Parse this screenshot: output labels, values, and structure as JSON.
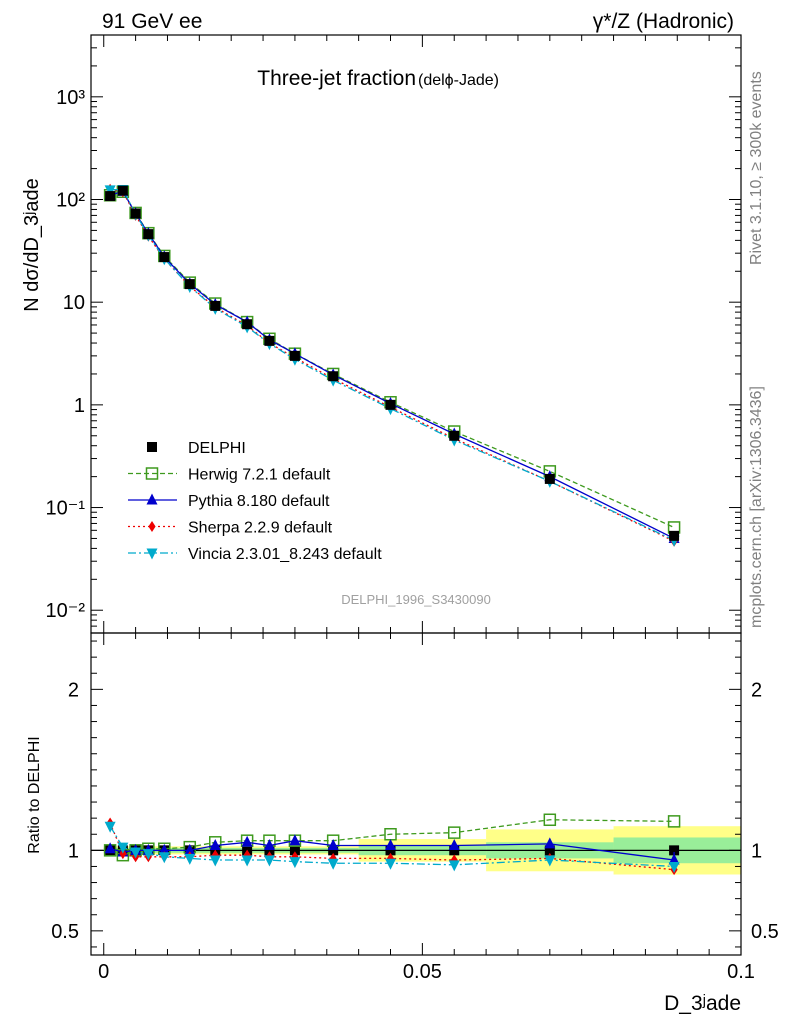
{
  "header": {
    "left": "91 GeV ee",
    "right": "γ*/Z (Hadronic)"
  },
  "side_labels": {
    "rivet": "Rivet 3.1.10, ≥ 300k events",
    "mcplots": "mcplots.cern.ch [arXiv:1306.3436]"
  },
  "chart_data": [
    {
      "type": "scatter",
      "title": "Three-jet fraction",
      "title_suffix": "(delϕ-Jade)",
      "ylabel": "N dσ/dD_3ʲade",
      "xlabel": "D_3ʲade",
      "y_scale": "log",
      "ylim": [
        0.006,
        4000
      ],
      "xlim": [
        -0.002,
        0.1
      ],
      "y_ticks": [
        "10⁻²",
        "10⁻¹",
        "1",
        "10",
        "10²",
        "10³"
      ],
      "analysis_label": "DELPHI_1996_S3430090",
      "legend_position": "middle-left",
      "x": [
        0.001,
        0.003,
        0.005,
        0.007,
        0.0095,
        0.0135,
        0.0175,
        0.0225,
        0.026,
        0.03,
        0.036,
        0.045,
        0.055,
        0.07,
        0.0895
      ],
      "series": [
        {
          "name": "DELPHI",
          "color": "#000000",
          "marker": "square-filled",
          "values": [
            108,
            122,
            73,
            46,
            27.5,
            15,
            9.2,
            6.1,
            4.2,
            3.0,
            1.9,
            1.0,
            0.5,
            0.19,
            0.053
          ],
          "errors": [
            3,
            3,
            2,
            1.2,
            0.8,
            0.4,
            0.25,
            0.2,
            0.13,
            0.1,
            0.06,
            0.03,
            0.02,
            0.01,
            0.004
          ]
        },
        {
          "name": "Herwig 7.2.1 default",
          "color": "#3e9a1e",
          "marker": "square-open",
          "line": "dashed",
          "values": [
            110,
            119,
            74,
            47,
            28.2,
            15.5,
            9.7,
            6.4,
            4.4,
            3.15,
            2.0,
            1.06,
            0.55,
            0.225,
            0.064
          ]
        },
        {
          "name": "Pythia 8.180 default",
          "color": "#0000cc",
          "marker": "triangle-up",
          "line": "solid",
          "values": [
            110,
            120,
            73,
            46.5,
            27.6,
            15.1,
            9.5,
            6.4,
            4.3,
            3.15,
            1.96,
            1.03,
            0.52,
            0.2,
            0.05
          ]
        },
        {
          "name": "Sherpa 2.2.9 default",
          "color": "#ee0000",
          "marker": "diamond",
          "line": "dotted",
          "values": [
            126,
            119,
            70,
            44,
            26.3,
            14.3,
            8.9,
            5.9,
            4.0,
            2.88,
            1.8,
            0.95,
            0.47,
            0.18,
            0.047
          ]
        },
        {
          "name": "Vincia 2.3.01_8.243 default",
          "color": "#00aacc",
          "marker": "triangle-down",
          "line": "dashdot",
          "values": [
            124,
            125,
            72,
            45,
            26.5,
            14.2,
            8.7,
            5.75,
            3.95,
            2.78,
            1.74,
            0.92,
            0.455,
            0.18,
            0.048
          ]
        }
      ]
    },
    {
      "type": "scatter",
      "title": "",
      "ylabel": "Ratio to DELPHI",
      "xlabel": "D_3ʲade",
      "ylim": [
        0.35,
        2.35
      ],
      "xlim": [
        -0.002,
        0.1
      ],
      "y_ticks": [
        0.5,
        1,
        2
      ],
      "x_ticks": [
        0,
        0.05,
        0.1
      ],
      "x_tick_labels": [
        "0",
        "0.05",
        "0.1"
      ],
      "reference_line": 1,
      "uncertainty_bands": [
        {
          "x": [
            0,
            0.04
          ],
          "inner": [
            0.985,
            1.015
          ],
          "outer": [
            0.975,
            1.025
          ]
        },
        {
          "x": [
            0.04,
            0.06
          ],
          "inner": [
            0.97,
            1.03
          ],
          "outer": [
            0.93,
            1.07
          ]
        },
        {
          "x": [
            0.06,
            0.08
          ],
          "inner": [
            0.95,
            1.05
          ],
          "outer": [
            0.87,
            1.13
          ]
        },
        {
          "x": [
            0.08,
            0.1
          ],
          "inner": [
            0.92,
            1.08
          ],
          "outer": [
            0.85,
            1.15
          ]
        }
      ],
      "series": [
        {
          "name": "Herwig 7.2.1 default",
          "color": "#3e9a1e",
          "marker": "square-open",
          "line": "dashed",
          "values": [
            1.0,
            0.97,
            1.0,
            1.01,
            1.01,
            1.02,
            1.05,
            1.06,
            1.06,
            1.06,
            1.06,
            1.1,
            1.11,
            1.19,
            1.18
          ]
        },
        {
          "name": "Pythia 8.180 default",
          "color": "#0000cc",
          "marker": "triangle-up",
          "line": "solid",
          "values": [
            1.01,
            0.99,
            1.0,
            1.0,
            1.0,
            1.0,
            1.03,
            1.05,
            1.03,
            1.06,
            1.03,
            1.03,
            1.03,
            1.04,
            0.94
          ],
          "errors": [
            0.01,
            0.01,
            0.01,
            0.01,
            0.01,
            0.01,
            0.01,
            0.01,
            0.01,
            0.01,
            0.01,
            0.01,
            0.02,
            0.02,
            0.05
          ]
        },
        {
          "name": "Sherpa 2.2.9 default",
          "color": "#ee0000",
          "marker": "diamond",
          "line": "dotted",
          "values": [
            1.17,
            0.98,
            0.96,
            0.96,
            0.96,
            0.96,
            0.97,
            0.97,
            0.96,
            0.96,
            0.95,
            0.95,
            0.94,
            0.95,
            0.88
          ]
        },
        {
          "name": "Vincia 2.3.01_8.243 default",
          "color": "#00aacc",
          "marker": "triangle-down",
          "line": "dashdot",
          "values": [
            1.15,
            1.02,
            0.99,
            0.98,
            0.96,
            0.95,
            0.94,
            0.94,
            0.94,
            0.93,
            0.92,
            0.92,
            0.91,
            0.94,
            0.9
          ]
        }
      ]
    }
  ]
}
